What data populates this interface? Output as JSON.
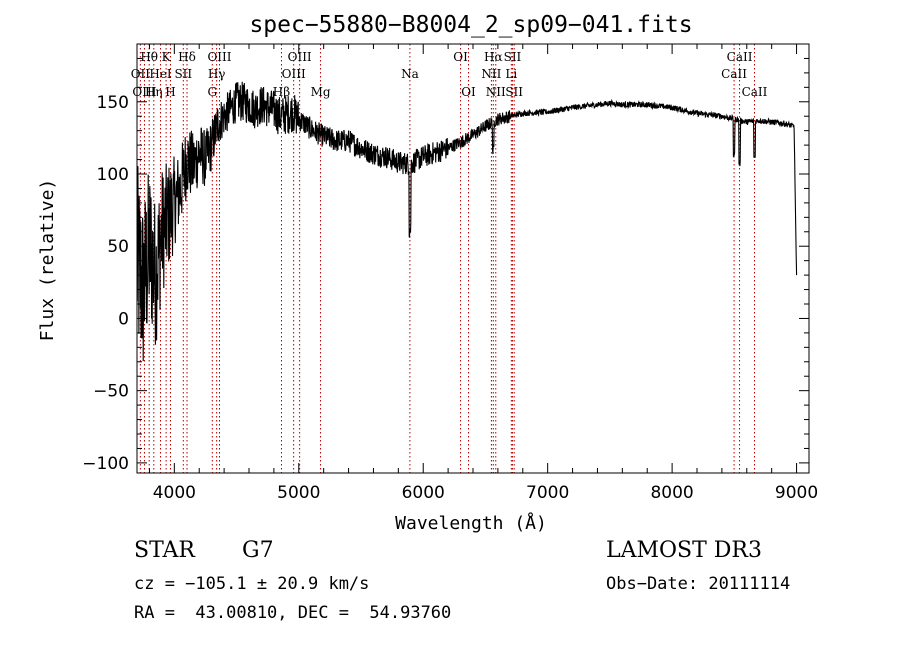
{
  "chart_data": {
    "type": "line",
    "title": "spec−55880−B8004_2_sp09−041.fits",
    "xlabel": "Wavelength (Å)",
    "ylabel": "Flux (relative)",
    "xlim": [
      3700,
      9100
    ],
    "ylim": [
      -107,
      190
    ],
    "xticks": [
      4000,
      5000,
      6000,
      7000,
      8000,
      9000
    ],
    "yticks": [
      -100,
      -50,
      0,
      50,
      100,
      150
    ],
    "xtick_labels": [
      "4000",
      "5000",
      "6000",
      "7000",
      "8000",
      "9000"
    ],
    "ytick_labels": [
      "−100",
      "−50",
      "0",
      "50",
      "100",
      "150"
    ],
    "series": [
      {
        "name": "flux",
        "x": [
          3700,
          3750,
          3800,
          3850,
          3900,
          3950,
          4000,
          4050,
          4100,
          4150,
          4200,
          4250,
          4300,
          4350,
          4400,
          4450,
          4500,
          4550,
          4600,
          4650,
          4700,
          4750,
          4800,
          4850,
          4900,
          4950,
          5000,
          5100,
          5200,
          5300,
          5400,
          5500,
          5600,
          5700,
          5800,
          5900,
          6000,
          6100,
          6200,
          6300,
          6400,
          6500,
          6600,
          6700,
          6800,
          7000,
          7200,
          7400,
          7500,
          7600,
          7800,
          8000,
          8200,
          8400,
          8500,
          8600,
          8700,
          8800,
          8900,
          8980,
          9000
        ],
        "y": [
          40,
          20,
          50,
          30,
          60,
          70,
          80,
          90,
          110,
          105,
          115,
          110,
          120,
          135,
          140,
          145,
          150,
          150,
          148,
          145,
          148,
          146,
          144,
          140,
          141,
          143,
          138,
          131,
          126,
          123,
          123,
          118,
          114,
          112,
          108,
          107,
          112,
          115,
          118,
          122,
          127,
          133,
          138,
          140,
          142,
          143,
          146,
          148,
          149,
          148,
          148,
          146,
          142,
          140,
          138,
          136,
          137,
          136,
          135,
          133,
          30
        ]
      }
    ],
    "lines": [
      {
        "label": "Hθ",
        "x": 3798,
        "row": 1
      },
      {
        "label": "OII",
        "x": 3727,
        "row": 2
      },
      {
        "label": "OIII",
        "x": 3760,
        "row": 3
      },
      {
        "label": "Hη",
        "x": 3835,
        "row": 3
      },
      {
        "label": "K",
        "x": 3934,
        "row": 1
      },
      {
        "label": "HeI",
        "x": 3889,
        "row": 2
      },
      {
        "label": "H",
        "x": 3969,
        "row": 3
      },
      {
        "label": "SII",
        "x": 4072,
        "row": 2
      },
      {
        "label": "Hδ",
        "x": 4102,
        "row": 1
      },
      {
        "label": "OIII",
        "x": 4363,
        "row": 1
      },
      {
        "label": "Hγ",
        "x": 4340,
        "row": 2
      },
      {
        "label": "G",
        "x": 4305,
        "row": 3
      },
      {
        "label": "OIII",
        "x": 5007,
        "row": 1
      },
      {
        "label": "OIII",
        "x": 4959,
        "row": 2
      },
      {
        "label": "Hβ",
        "x": 4861,
        "row": 3
      },
      {
        "label": "Mg",
        "x": 5175,
        "row": 3
      },
      {
        "label": "Na",
        "x": 5893,
        "row": 2
      },
      {
        "label": "OI",
        "x": 6300,
        "row": 1
      },
      {
        "label": "OI",
        "x": 6364,
        "row": 3
      },
      {
        "label": "Hα",
        "x": 6563,
        "row": 1
      },
      {
        "label": "NII",
        "x": 6548,
        "row": 2
      },
      {
        "label": "NII",
        "x": 6583,
        "row": 3
      },
      {
        "label": "SII",
        "x": 6717,
        "row": 1
      },
      {
        "label": "Li",
        "x": 6708,
        "row": 2
      },
      {
        "label": "SII",
        "x": 6731,
        "row": 3
      },
      {
        "label": "CaII",
        "x": 8542,
        "row": 1
      },
      {
        "label": "CaII",
        "x": 8498,
        "row": 2
      },
      {
        "label": "CaII",
        "x": 8662,
        "row": 3
      }
    ]
  },
  "info": {
    "object_class": "STAR",
    "subclass": "G7",
    "survey": "LAMOST DR3",
    "cz": "cz = −105.1 ± 20.9 km/s",
    "obs_date": "Obs−Date: 20111114",
    "radec": "RA =  43.00810, DEC =  54.93760"
  }
}
